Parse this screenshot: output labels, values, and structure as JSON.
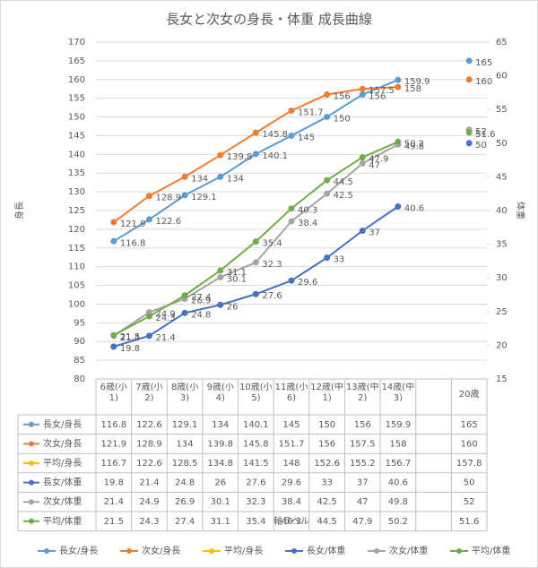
{
  "chart_data": {
    "type": "line",
    "title": "長女と次女の身長・体重  成長曲線",
    "x_label": "軸ラベル",
    "y_label": "身長",
    "y2_label": "体重",
    "categories": [
      "6歳(小1)",
      "7歳(小2)",
      "8歳(小3)",
      "9歳(小4)",
      "10歳(小5)",
      "11歳(小6)",
      "12歳(中1)",
      "13歳(中2)",
      "14歳(中3)",
      null,
      "20歳"
    ],
    "ylim": [
      80,
      170
    ],
    "yticks": [
      80,
      85,
      90,
      95,
      100,
      105,
      110,
      115,
      120,
      125,
      130,
      135,
      140,
      145,
      150,
      155,
      160,
      165,
      170
    ],
    "y2lim": [
      15,
      65
    ],
    "y2ticks": [
      15,
      20,
      25,
      30,
      35,
      40,
      45,
      50,
      55,
      60,
      65
    ],
    "grid": true,
    "data_labels": true,
    "data_table": true,
    "legend": "bottom",
    "series": [
      {
        "name": "長女/身長",
        "color": "#5b9bd5",
        "values": [
          116.8,
          122.6,
          129.1,
          134,
          140.1,
          145,
          150,
          156,
          159.9,
          null,
          165
        ]
      },
      {
        "name": "次女/身長",
        "color": "#ed7d31",
        "values": [
          121.9,
          128.9,
          134,
          139.8,
          145.8,
          151.7,
          156,
          157.5,
          158,
          null,
          160
        ]
      },
      {
        "name": "平均/身長",
        "color": "#ffc000",
        "hidden_in_plot": true,
        "values": [
          116.7,
          122.6,
          128.5,
          134.8,
          141.5,
          148,
          152.6,
          155.2,
          156.7,
          null,
          157.8
        ]
      },
      {
        "name": "長女/体重",
        "color": "#4472c4",
        "axis": "y2",
        "values": [
          19.8,
          21.4,
          24.8,
          26,
          27.6,
          29.6,
          33,
          37,
          40.6,
          null,
          50
        ]
      },
      {
        "name": "次女/体重",
        "color": "#a5a5a5",
        "axis": "y2",
        "values": [
          21.4,
          24.9,
          26.9,
          30.1,
          32.3,
          38.4,
          42.5,
          47,
          49.8,
          null,
          52
        ]
      },
      {
        "name": "平均/体重",
        "color": "#70ad47",
        "axis": "y2",
        "values": [
          21.5,
          24.3,
          27.4,
          31.1,
          35.4,
          40.3,
          44.5,
          47.9,
          50.2,
          null,
          51.6
        ]
      }
    ]
  }
}
